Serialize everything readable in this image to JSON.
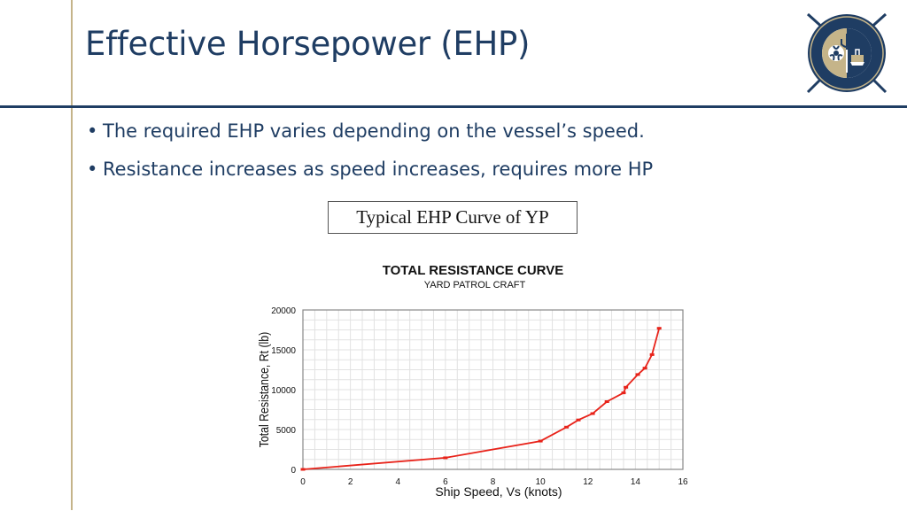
{
  "slide": {
    "title": "Effective Horsepower (EHP)",
    "bullets": [
      "The required EHP varies depending on the vessel’s speed.",
      "Resistance increases as speed increases, requires more HP"
    ],
    "figure_caption": "Typical EHP Curve of YP",
    "logo": {
      "icon": "naval-academy-seal-icon",
      "colors": [
        "#1f3d63",
        "#c5b489"
      ]
    },
    "colors": {
      "title": "#1f3d63",
      "divider": "#1f3d63",
      "accent_line": "#c5b489",
      "series": "#e8231a"
    }
  },
  "chart_data": {
    "type": "line",
    "title": "TOTAL RESISTANCE CURVE",
    "subtitle": "YARD PATROL CRAFT",
    "xlabel": "Ship Speed, Vs (knots)",
    "ylabel": "Total Resistance, Rt (lb)",
    "xlim": [
      0,
      16
    ],
    "ylim": [
      0,
      20000
    ],
    "xticks": [
      0,
      2,
      4,
      6,
      8,
      10,
      12,
      14,
      16
    ],
    "yticks": [
      0,
      5000,
      10000,
      15000,
      20000
    ],
    "grid": true,
    "series": [
      {
        "x": [
          0,
          6,
          10,
          11.1,
          11.6,
          12.2,
          12.8,
          13.5,
          13.6,
          14.1,
          14.4,
          14.7,
          15
        ],
        "y": [
          0,
          1450,
          3550,
          5300,
          6200,
          7000,
          8500,
          9600,
          10300,
          11900,
          12700,
          14400,
          17700
        ]
      }
    ]
  }
}
